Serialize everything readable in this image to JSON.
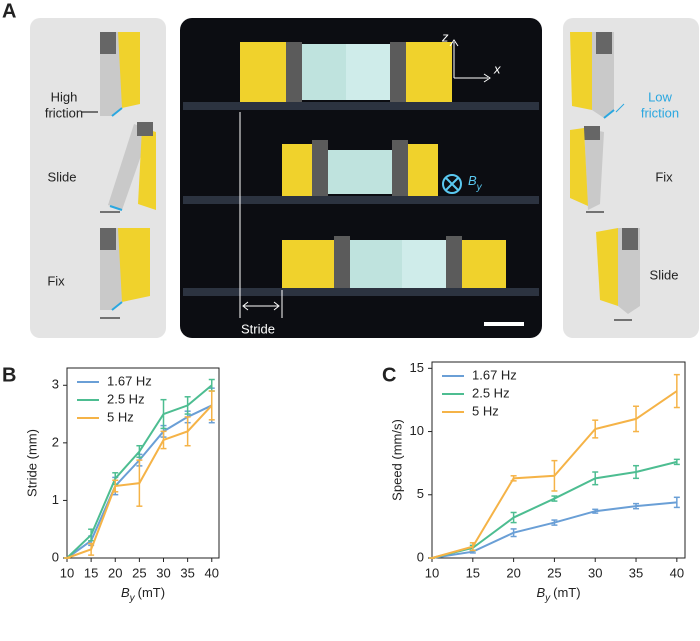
{
  "panel_a": {
    "label": "A",
    "left": {
      "high_friction": [
        "High",
        "friction"
      ],
      "slide": "Slide",
      "fix": "Fix"
    },
    "center": {
      "axis_z": "z",
      "axis_x": "x",
      "field_symbol": "B",
      "field_sub": "y",
      "stride": "Stride"
    },
    "right": {
      "low_friction": [
        "Low",
        "friction"
      ],
      "fix": "Fix",
      "slide": "Slide"
    }
  },
  "chart_data": [
    {
      "type": "line",
      "label": "B",
      "y_label": "Stride (mm)",
      "x_label": {
        "symbol": "B",
        "sub": "y",
        "unit": "(mT)"
      },
      "x": [
        10,
        15,
        20,
        25,
        30,
        35,
        40
      ],
      "xlim": [
        10,
        41.5
      ],
      "xticks": [
        10,
        15,
        20,
        25,
        30,
        35,
        40
      ],
      "ylim": [
        0,
        3.3
      ],
      "yticks": [
        0,
        1,
        2,
        3
      ],
      "legend": "upper-left",
      "series": [
        {
          "name": "1.67 Hz",
          "color": "#6a9fd6",
          "values": [
            0,
            0.3,
            1.25,
            1.7,
            2.2,
            2.45,
            2.65
          ],
          "errors": [
            0,
            0.08,
            0.15,
            0.1,
            0.1,
            0.1,
            0.3
          ]
        },
        {
          "name": "2.5 Hz",
          "color": "#4dbd91",
          "values": [
            0,
            0.4,
            1.38,
            1.85,
            2.5,
            2.65,
            3.0
          ],
          "errors": [
            0,
            0.1,
            0.1,
            0.1,
            0.25,
            0.15,
            0.1
          ]
        },
        {
          "name": "5 Hz",
          "color": "#f5b347",
          "values": [
            0,
            0.15,
            1.25,
            1.3,
            2.05,
            2.2,
            2.65
          ],
          "errors": [
            0,
            0.1,
            0.1,
            0.4,
            0.15,
            0.25,
            0.25
          ]
        }
      ]
    },
    {
      "type": "line",
      "label": "C",
      "y_label": "Speed (mm/s)",
      "x_label": {
        "symbol": "B",
        "sub": "y",
        "unit": "(mT)"
      },
      "x": [
        10,
        15,
        20,
        25,
        30,
        35,
        40
      ],
      "xlim": [
        10,
        41
      ],
      "xticks": [
        10,
        15,
        20,
        25,
        30,
        35,
        40
      ],
      "ylim": [
        0,
        15.5
      ],
      "yticks": [
        0,
        5,
        10,
        15
      ],
      "legend": "upper-left",
      "series": [
        {
          "name": "1.67 Hz",
          "color": "#6a9fd6",
          "values": [
            0,
            0.5,
            2.0,
            2.8,
            3.7,
            4.1,
            4.4
          ],
          "errors": [
            0,
            0.1,
            0.3,
            0.2,
            0.15,
            0.2,
            0.4
          ]
        },
        {
          "name": "2.5 Hz",
          "color": "#4dbd91",
          "values": [
            0,
            0.8,
            3.2,
            4.7,
            6.3,
            6.8,
            7.6
          ],
          "errors": [
            0,
            0.2,
            0.4,
            0.2,
            0.5,
            0.5,
            0.2
          ]
        },
        {
          "name": "5 Hz",
          "color": "#f5b347",
          "values": [
            0,
            0.9,
            6.3,
            6.5,
            10.2,
            11.0,
            13.2
          ],
          "errors": [
            0,
            0.3,
            0.2,
            1.2,
            0.7,
            1.0,
            1.3
          ]
        }
      ]
    }
  ]
}
